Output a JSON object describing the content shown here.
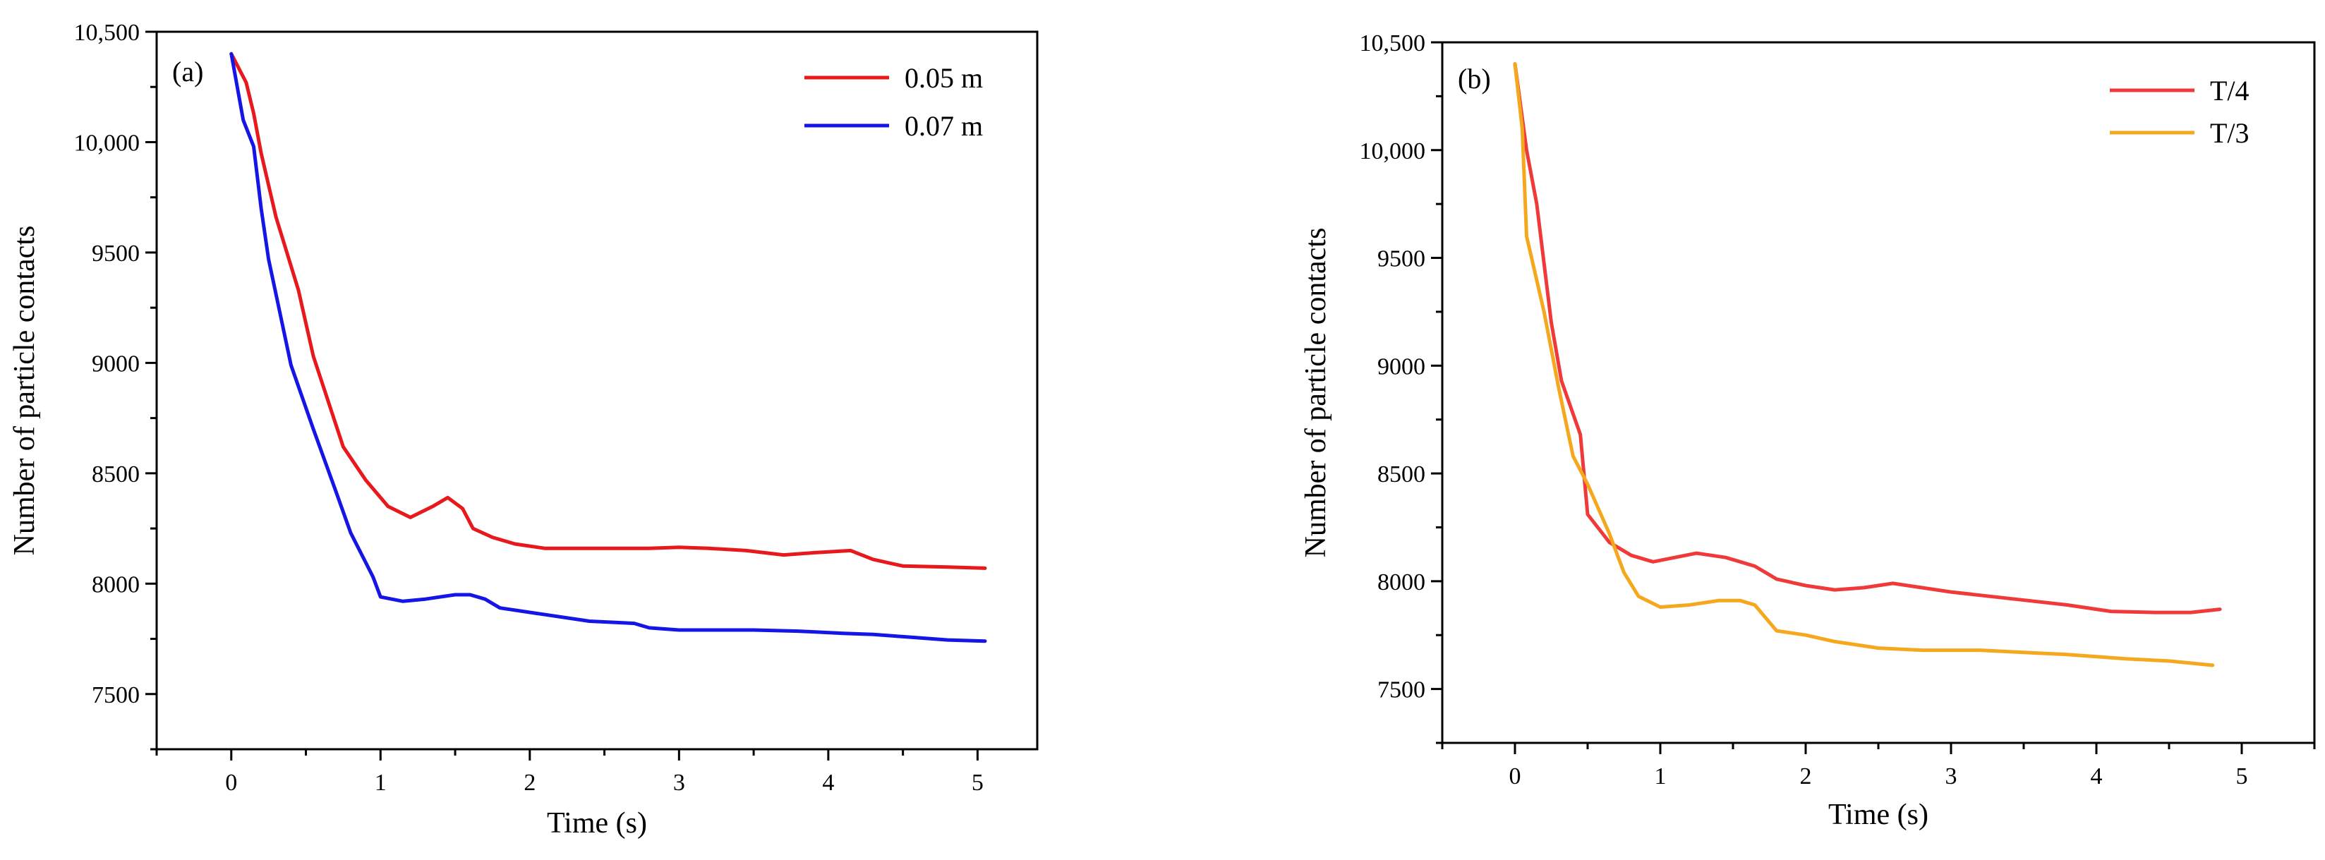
{
  "chart_data": [
    {
      "type": "line",
      "panel_label": "(a)",
      "xlabel": "Time (s)",
      "ylabel": "Number of particle contacts",
      "xlim": [
        -0.5,
        5.4
      ],
      "ylim": [
        7250,
        10500
      ],
      "xticks": [
        0,
        1,
        2,
        3,
        4,
        5
      ],
      "xtick_labels": [
        "0",
        "1",
        "2",
        "3",
        "4",
        "5"
      ],
      "yticks": [
        7500,
        8000,
        8500,
        9000,
        9500,
        10000,
        10500
      ],
      "ytick_labels": [
        "7500",
        "8000",
        "8500",
        "9000",
        "9500",
        "10,000",
        "10,500"
      ],
      "grid": false,
      "legend_position": "top-right",
      "series": [
        {
          "name": "0.05 m",
          "color": "#e8191c",
          "x": [
            0.0,
            0.1,
            0.15,
            0.2,
            0.3,
            0.45,
            0.55,
            0.75,
            0.9,
            1.05,
            1.2,
            1.35,
            1.45,
            1.55,
            1.62,
            1.75,
            1.9,
            2.1,
            2.5,
            2.8,
            3.0,
            3.2,
            3.45,
            3.7,
            3.9,
            4.15,
            4.3,
            4.5,
            4.8,
            5.05
          ],
          "y": [
            10400,
            10270,
            10130,
            9950,
            9660,
            9330,
            9030,
            8620,
            8470,
            8350,
            8300,
            8350,
            8390,
            8340,
            8250,
            8210,
            8180,
            8160,
            8160,
            8160,
            8165,
            8160,
            8150,
            8130,
            8140,
            8150,
            8110,
            8080,
            8075,
            8070
          ]
        },
        {
          "name": "0.07 m",
          "color": "#1515e6",
          "x": [
            0.0,
            0.08,
            0.15,
            0.2,
            0.25,
            0.4,
            0.55,
            0.7,
            0.8,
            0.95,
            1.0,
            1.15,
            1.3,
            1.5,
            1.6,
            1.7,
            1.8,
            2.0,
            2.4,
            2.7,
            2.8,
            3.0,
            3.2,
            3.5,
            3.8,
            4.1,
            4.3,
            4.5,
            4.8,
            5.05
          ],
          "y": [
            10400,
            10100,
            9980,
            9700,
            9470,
            8990,
            8700,
            8420,
            8230,
            8030,
            7940,
            7920,
            7930,
            7950,
            7950,
            7930,
            7890,
            7870,
            7830,
            7820,
            7800,
            7790,
            7790,
            7790,
            7785,
            7775,
            7770,
            7760,
            7745,
            7740
          ]
        }
      ]
    },
    {
      "type": "line",
      "panel_label": "(b)",
      "xlabel": "Time (s)",
      "ylabel": "Number of particle contacts",
      "xlim": [
        -0.5,
        5.5
      ],
      "ylim": [
        7250,
        10500
      ],
      "xticks": [
        0,
        1,
        2,
        3,
        4,
        5
      ],
      "xtick_labels": [
        "0",
        "1",
        "2",
        "3",
        "4",
        "5"
      ],
      "yticks": [
        7500,
        8000,
        8500,
        9000,
        9500,
        10000,
        10500
      ],
      "ytick_labels": [
        "7500",
        "8000",
        "8500",
        "9000",
        "9500",
        "10,000",
        "10,500"
      ],
      "grid": false,
      "legend_position": "top-right",
      "series": [
        {
          "name": "T/4",
          "color": "#f03a3a",
          "x": [
            0.0,
            0.08,
            0.15,
            0.25,
            0.32,
            0.45,
            0.5,
            0.65,
            0.8,
            0.95,
            1.1,
            1.25,
            1.45,
            1.65,
            1.8,
            2.0,
            2.2,
            2.4,
            2.6,
            2.8,
            3.0,
            3.4,
            3.8,
            4.1,
            4.4,
            4.65,
            4.85
          ],
          "y": [
            10400,
            10000,
            9750,
            9200,
            8930,
            8680,
            8310,
            8180,
            8120,
            8090,
            8110,
            8130,
            8110,
            8070,
            8010,
            7980,
            7960,
            7970,
            7990,
            7970,
            7950,
            7920,
            7890,
            7860,
            7855,
            7855,
            7870
          ]
        },
        {
          "name": "T/3",
          "color": "#f5a81e",
          "x": [
            0.0,
            0.05,
            0.08,
            0.2,
            0.3,
            0.4,
            0.5,
            0.65,
            0.75,
            0.85,
            1.0,
            1.2,
            1.4,
            1.55,
            1.65,
            1.8,
            2.0,
            2.2,
            2.5,
            2.8,
            3.2,
            3.5,
            3.8,
            4.2,
            4.5,
            4.8
          ],
          "y": [
            10400,
            10100,
            9600,
            9250,
            8900,
            8580,
            8450,
            8220,
            8040,
            7930,
            7880,
            7890,
            7910,
            7910,
            7890,
            7770,
            7750,
            7720,
            7690,
            7680,
            7680,
            7670,
            7660,
            7640,
            7630,
            7610
          ]
        }
      ]
    }
  ]
}
